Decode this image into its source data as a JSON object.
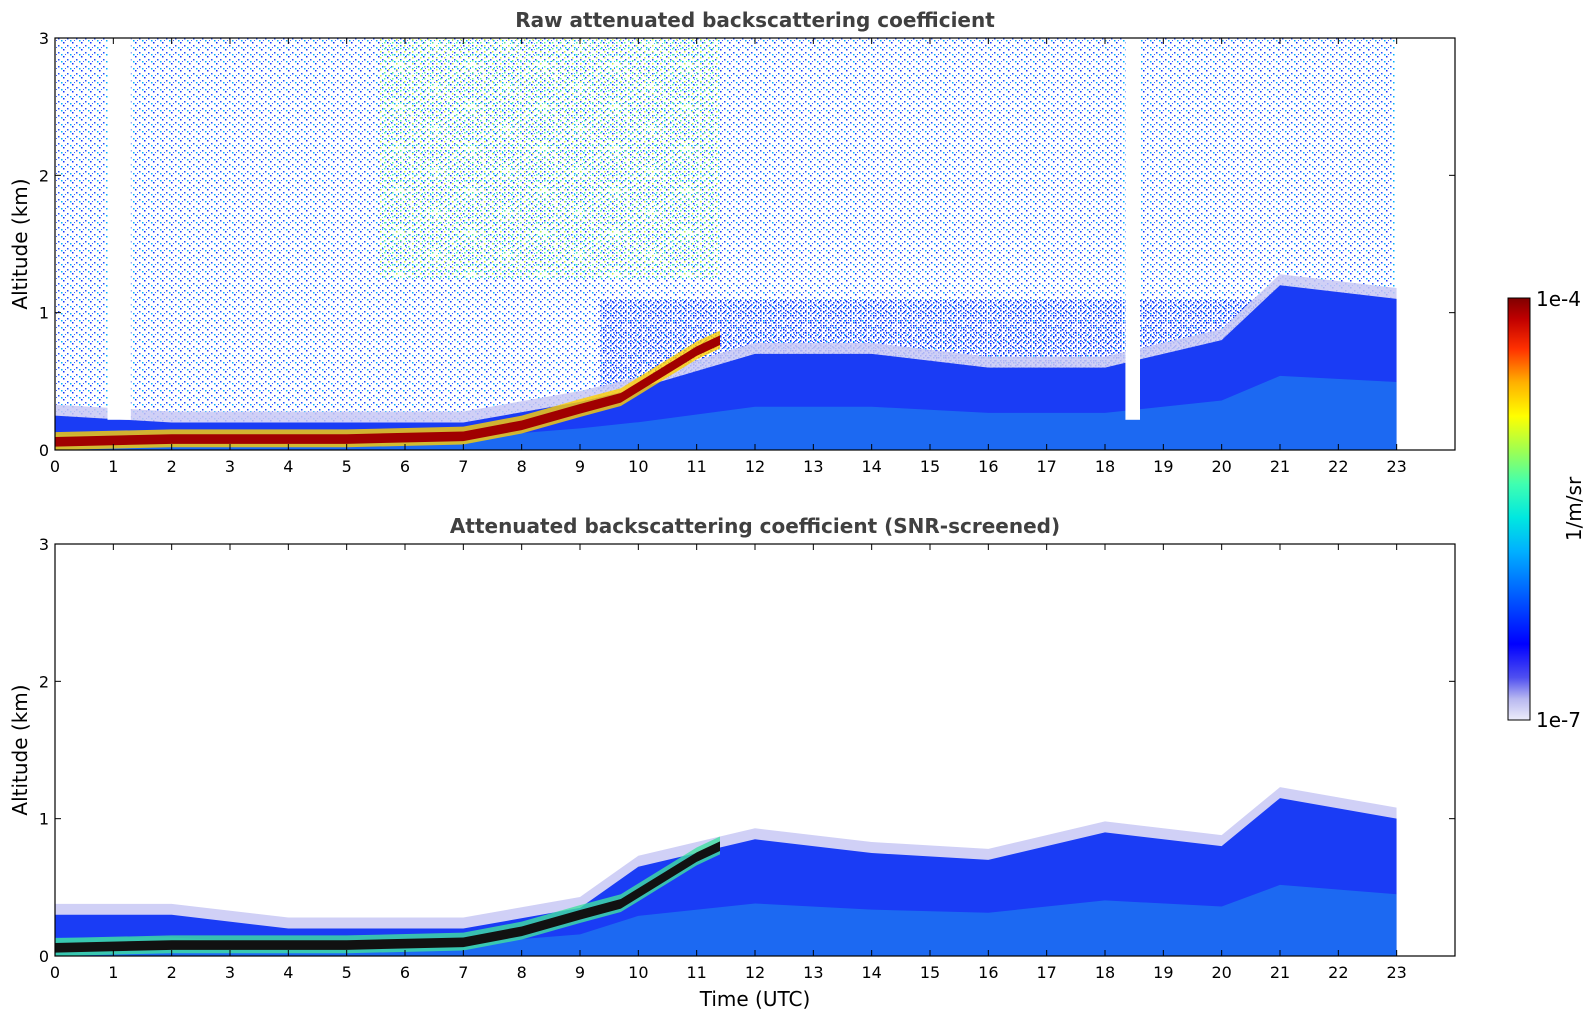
{
  "chart_data": [
    {
      "type": "heatmap",
      "title": "Raw attenuated backscattering coefficient",
      "xlabel": "",
      "ylabel": "Altitude (km)",
      "xlim": [
        0,
        24
      ],
      "ylim": [
        0,
        3
      ],
      "x_ticks": [
        "0",
        "1",
        "2",
        "3",
        "4",
        "5",
        "6",
        "7",
        "8",
        "9",
        "10",
        "11",
        "12",
        "13",
        "14",
        "15",
        "16",
        "17",
        "18",
        "19",
        "20",
        "21",
        "22",
        "23"
      ],
      "y_ticks": [
        "0",
        "1",
        "2",
        "3"
      ],
      "data_end_hour": 23,
      "boundary_layer_top_km": [
        {
          "x": 0,
          "y": 0.25
        },
        {
          "x": 2,
          "y": 0.2
        },
        {
          "x": 4,
          "y": 0.2
        },
        {
          "x": 7,
          "y": 0.2
        },
        {
          "x": 9,
          "y": 0.35
        },
        {
          "x": 10,
          "y": 0.45
        },
        {
          "x": 12,
          "y": 0.7
        },
        {
          "x": 14,
          "y": 0.7
        },
        {
          "x": 16,
          "y": 0.6
        },
        {
          "x": 18,
          "y": 0.6
        },
        {
          "x": 20,
          "y": 0.8
        },
        {
          "x": 21,
          "y": 1.2
        },
        {
          "x": 23,
          "y": 1.1
        }
      ],
      "strong_layer_km": [
        {
          "x": 0,
          "y": 0.06
        },
        {
          "x": 2,
          "y": 0.08
        },
        {
          "x": 5,
          "y": 0.08
        },
        {
          "x": 7,
          "y": 0.1
        },
        {
          "x": 8,
          "y": 0.18
        },
        {
          "x": 9,
          "y": 0.3
        },
        {
          "x": 9.7,
          "y": 0.38
        },
        {
          "x": 11,
          "y": 0.72
        },
        {
          "x": 11.4,
          "y": 0.8
        }
      ],
      "noise_gaps_hours": [
        [
          0.9,
          1.3
        ],
        [
          18.35,
          18.6
        ]
      ]
    },
    {
      "type": "heatmap",
      "title": "Attenuated backscattering coefficient (SNR-screened)",
      "xlabel": "Time (UTC)",
      "ylabel": "Altitude (km)",
      "xlim": [
        0,
        24
      ],
      "ylim": [
        0,
        3
      ],
      "x_ticks": [
        "0",
        "1",
        "2",
        "3",
        "4",
        "5",
        "6",
        "7",
        "8",
        "9",
        "10",
        "11",
        "12",
        "13",
        "14",
        "15",
        "16",
        "17",
        "18",
        "19",
        "20",
        "21",
        "22",
        "23"
      ],
      "y_ticks": [
        "0",
        "1",
        "2",
        "3"
      ],
      "data_end_hour": 23,
      "boundary_layer_top_km": [
        {
          "x": 0,
          "y": 0.3
        },
        {
          "x": 2,
          "y": 0.3
        },
        {
          "x": 4,
          "y": 0.2
        },
        {
          "x": 7,
          "y": 0.2
        },
        {
          "x": 9,
          "y": 0.35
        },
        {
          "x": 10,
          "y": 0.65
        },
        {
          "x": 12,
          "y": 0.85
        },
        {
          "x": 14,
          "y": 0.75
        },
        {
          "x": 16,
          "y": 0.7
        },
        {
          "x": 17,
          "y": 0.8
        },
        {
          "x": 18,
          "y": 0.9
        },
        {
          "x": 20,
          "y": 0.8
        },
        {
          "x": 21,
          "y": 1.15
        },
        {
          "x": 23,
          "y": 1.0
        }
      ]
    }
  ],
  "colorbar": {
    "label": "1/m/sr",
    "max_label": "1e-4",
    "min_label": "1e-7",
    "colors": [
      "#e8e8f8",
      "#c8c8f0",
      "#8080f0",
      "#0000ff",
      "#0050ff",
      "#00a0ff",
      "#00e0e0",
      "#40ffc0",
      "#a0ff60",
      "#ffff00",
      "#ffb000",
      "#ff4000",
      "#c00000",
      "#800000"
    ]
  }
}
